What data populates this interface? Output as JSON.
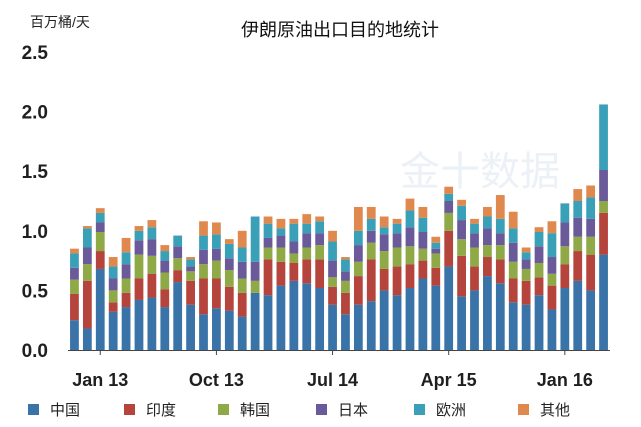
{
  "chart_data": {
    "type": "bar",
    "stacked": true,
    "title": "伊朗原油出口目的地统计",
    "ylabel": "百万桶/天",
    "ylim": [
      0,
      2.5
    ],
    "yticks": [
      "0.0",
      "0.5",
      "1.0",
      "1.5",
      "2.0",
      "2.5"
    ],
    "xtick_labels": [
      {
        "label": "Jan 13",
        "index": 2
      },
      {
        "label": "Oct 13",
        "index": 11
      },
      {
        "label": "Jul 14",
        "index": 20
      },
      {
        "label": "Apr 15",
        "index": 29
      },
      {
        "label": "Jan 16",
        "index": 38
      }
    ],
    "grid": false,
    "legend_position": "bottom",
    "watermark": "金十数据",
    "categories": [
      "1",
      "2",
      "3",
      "4",
      "5",
      "6",
      "7",
      "8",
      "9",
      "10",
      "11",
      "12",
      "13",
      "14",
      "15",
      "16",
      "17",
      "18",
      "19",
      "20",
      "21",
      "22",
      "23",
      "24",
      "25",
      "26",
      "27",
      "28",
      "29",
      "30",
      "31",
      "32",
      "33",
      "34",
      "35",
      "36",
      "37",
      "38",
      "39",
      "40",
      "41",
      "42"
    ],
    "series": [
      {
        "name": "中国",
        "color": "#3a73a8",
        "values": [
          0.25,
          0.18,
          0.68,
          0.32,
          0.36,
          0.42,
          0.44,
          0.36,
          0.57,
          0.38,
          0.3,
          0.35,
          0.33,
          0.28,
          0.48,
          0.46,
          0.54,
          0.58,
          0.56,
          0.52,
          0.38,
          0.3,
          0.38,
          0.41,
          0.5,
          0.46,
          0.52,
          0.6,
          0.54,
          0.7,
          0.45,
          0.5,
          0.62,
          0.56,
          0.4,
          0.38,
          0.46,
          0.34,
          0.52,
          0.58,
          0.5,
          0.8
        ]
      },
      {
        "name": "印度",
        "color": "#b5443d",
        "values": [
          0.22,
          0.4,
          0.15,
          0.08,
          0.12,
          0.18,
          0.2,
          0.15,
          0.1,
          0.2,
          0.3,
          0.25,
          0.2,
          0.2,
          0.0,
          0.3,
          0.2,
          0.15,
          0.2,
          0.24,
          0.15,
          0.18,
          0.24,
          0.35,
          0.18,
          0.24,
          0.2,
          0.15,
          0.15,
          0.3,
          0.34,
          0.2,
          0.16,
          0.2,
          0.2,
          0.2,
          0.15,
          0.2,
          0.2,
          0.25,
          0.3,
          0.35
        ]
      },
      {
        "name": "韩国",
        "color": "#8fa947",
        "values": [
          0.12,
          0.14,
          0.16,
          0.1,
          0.12,
          0.2,
          0.15,
          0.14,
          0.1,
          0.08,
          0.12,
          0.15,
          0.14,
          0.12,
          0.1,
          0.1,
          0.12,
          0.08,
          0.1,
          0.12,
          0.08,
          0.1,
          0.12,
          0.14,
          0.15,
          0.16,
          0.15,
          0.1,
          0.12,
          0.15,
          0.14,
          0.16,
          0.1,
          0.12,
          0.14,
          0.1,
          0.12,
          0.1,
          0.15,
          0.12,
          0.15,
          0.1
        ]
      },
      {
        "name": "日本",
        "color": "#6a5a9a",
        "values": [
          0.1,
          0.14,
          0.08,
          0.1,
          0.12,
          0.12,
          0.14,
          0.1,
          0.1,
          0.04,
          0.12,
          0.1,
          0.1,
          0.14,
          0.16,
          0.08,
          0.1,
          0.1,
          0.12,
          0.1,
          0.14,
          0.08,
          0.14,
          0.1,
          0.14,
          0.12,
          0.16,
          0.14,
          0.04,
          0.1,
          0.16,
          0.12,
          0.14,
          0.1,
          0.16,
          0.08,
          0.14,
          0.14,
          0.2,
          0.16,
          0.15,
          0.26
        ]
      },
      {
        "name": "欧洲",
        "color": "#3aa0b8",
        "values": [
          0.12,
          0.16,
          0.08,
          0.1,
          0.1,
          0.08,
          0.1,
          0.08,
          0.09,
          0.06,
          0.12,
          0.12,
          0.12,
          0.12,
          0.38,
          0.12,
          0.06,
          0.15,
          0.08,
          0.1,
          0.16,
          0.1,
          0.12,
          0.1,
          0.06,
          0.08,
          0.14,
          0.12,
          0.05,
          0.06,
          0.12,
          0.08,
          0.1,
          0.12,
          0.12,
          0.06,
          0.12,
          0.2,
          0.16,
          0.14,
          0.18,
          0.55
        ]
      },
      {
        "name": "其他",
        "color": "#e0894f",
        "values": [
          0.04,
          0.02,
          0.04,
          0.08,
          0.12,
          0.04,
          0.06,
          0.05,
          0.0,
          0.02,
          0.12,
          0.1,
          0.04,
          0.14,
          0.0,
          0.06,
          0.08,
          0.04,
          0.08,
          0.04,
          0.09,
          0.02,
          0.2,
          0.1,
          0.09,
          0.04,
          0.1,
          0.09,
          0.05,
          0.06,
          0.05,
          0.04,
          0.08,
          0.2,
          0.14,
          0.04,
          0.04,
          0.1,
          0.0,
          0.1,
          0.1,
          0.0
        ]
      }
    ]
  }
}
